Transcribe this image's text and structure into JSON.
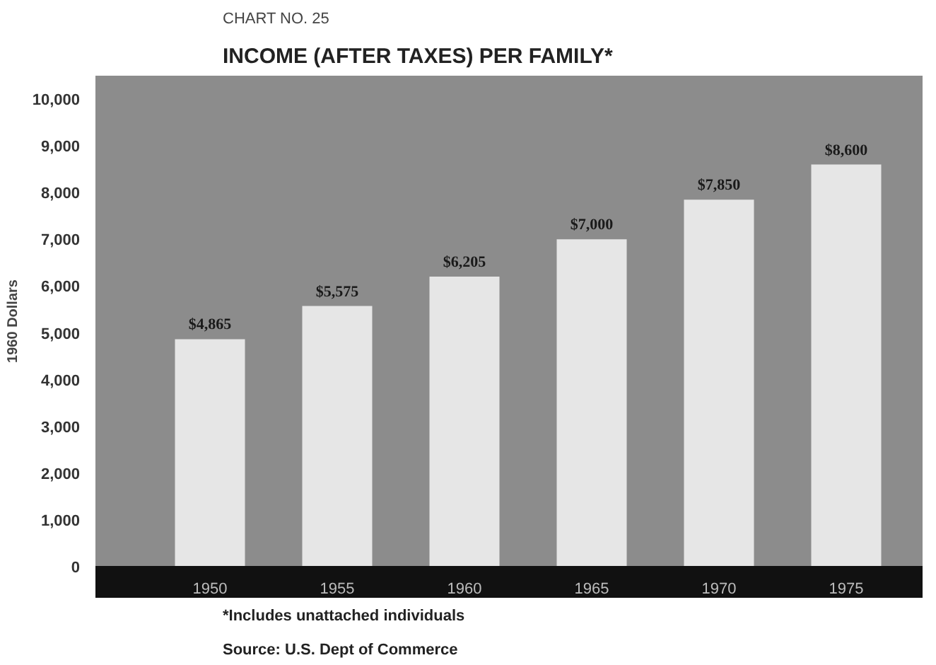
{
  "chart_data": {
    "type": "bar",
    "subtitle": "CHART NO. 25",
    "title": "INCOME (AFTER TAXES) PER FAMILY*",
    "ylabel": "1960 Dollars",
    "categories": [
      "1950",
      "1955",
      "1960",
      "1965",
      "1970",
      "1975"
    ],
    "values": [
      4865,
      5575,
      6205,
      7000,
      7850,
      8600
    ],
    "value_labels": [
      "$4,865",
      "$5,575",
      "$6,205",
      "$7,000",
      "$7,850",
      "$8,600"
    ],
    "color": "#e6e6e6",
    "ylim": [
      0,
      10500
    ],
    "yticks": [
      {
        "value": 0,
        "label": "0"
      },
      {
        "value": 1000,
        "label": "1,000"
      },
      {
        "value": 2000,
        "label": "2,000"
      },
      {
        "value": 3000,
        "label": "3,000"
      },
      {
        "value": 4000,
        "label": "4,000"
      },
      {
        "value": 5000,
        "label": "5,000"
      },
      {
        "value": 6000,
        "label": "6,000"
      },
      {
        "value": 7000,
        "label": "7,000"
      },
      {
        "value": 8000,
        "label": "8,000"
      },
      {
        "value": 9000,
        "label": "9,000"
      },
      {
        "value": 10000,
        "label": "10,000"
      }
    ],
    "grid": false,
    "annotations": [
      "*Includes unattached individuals",
      "Source: U.S. Dept of Commerce"
    ]
  }
}
